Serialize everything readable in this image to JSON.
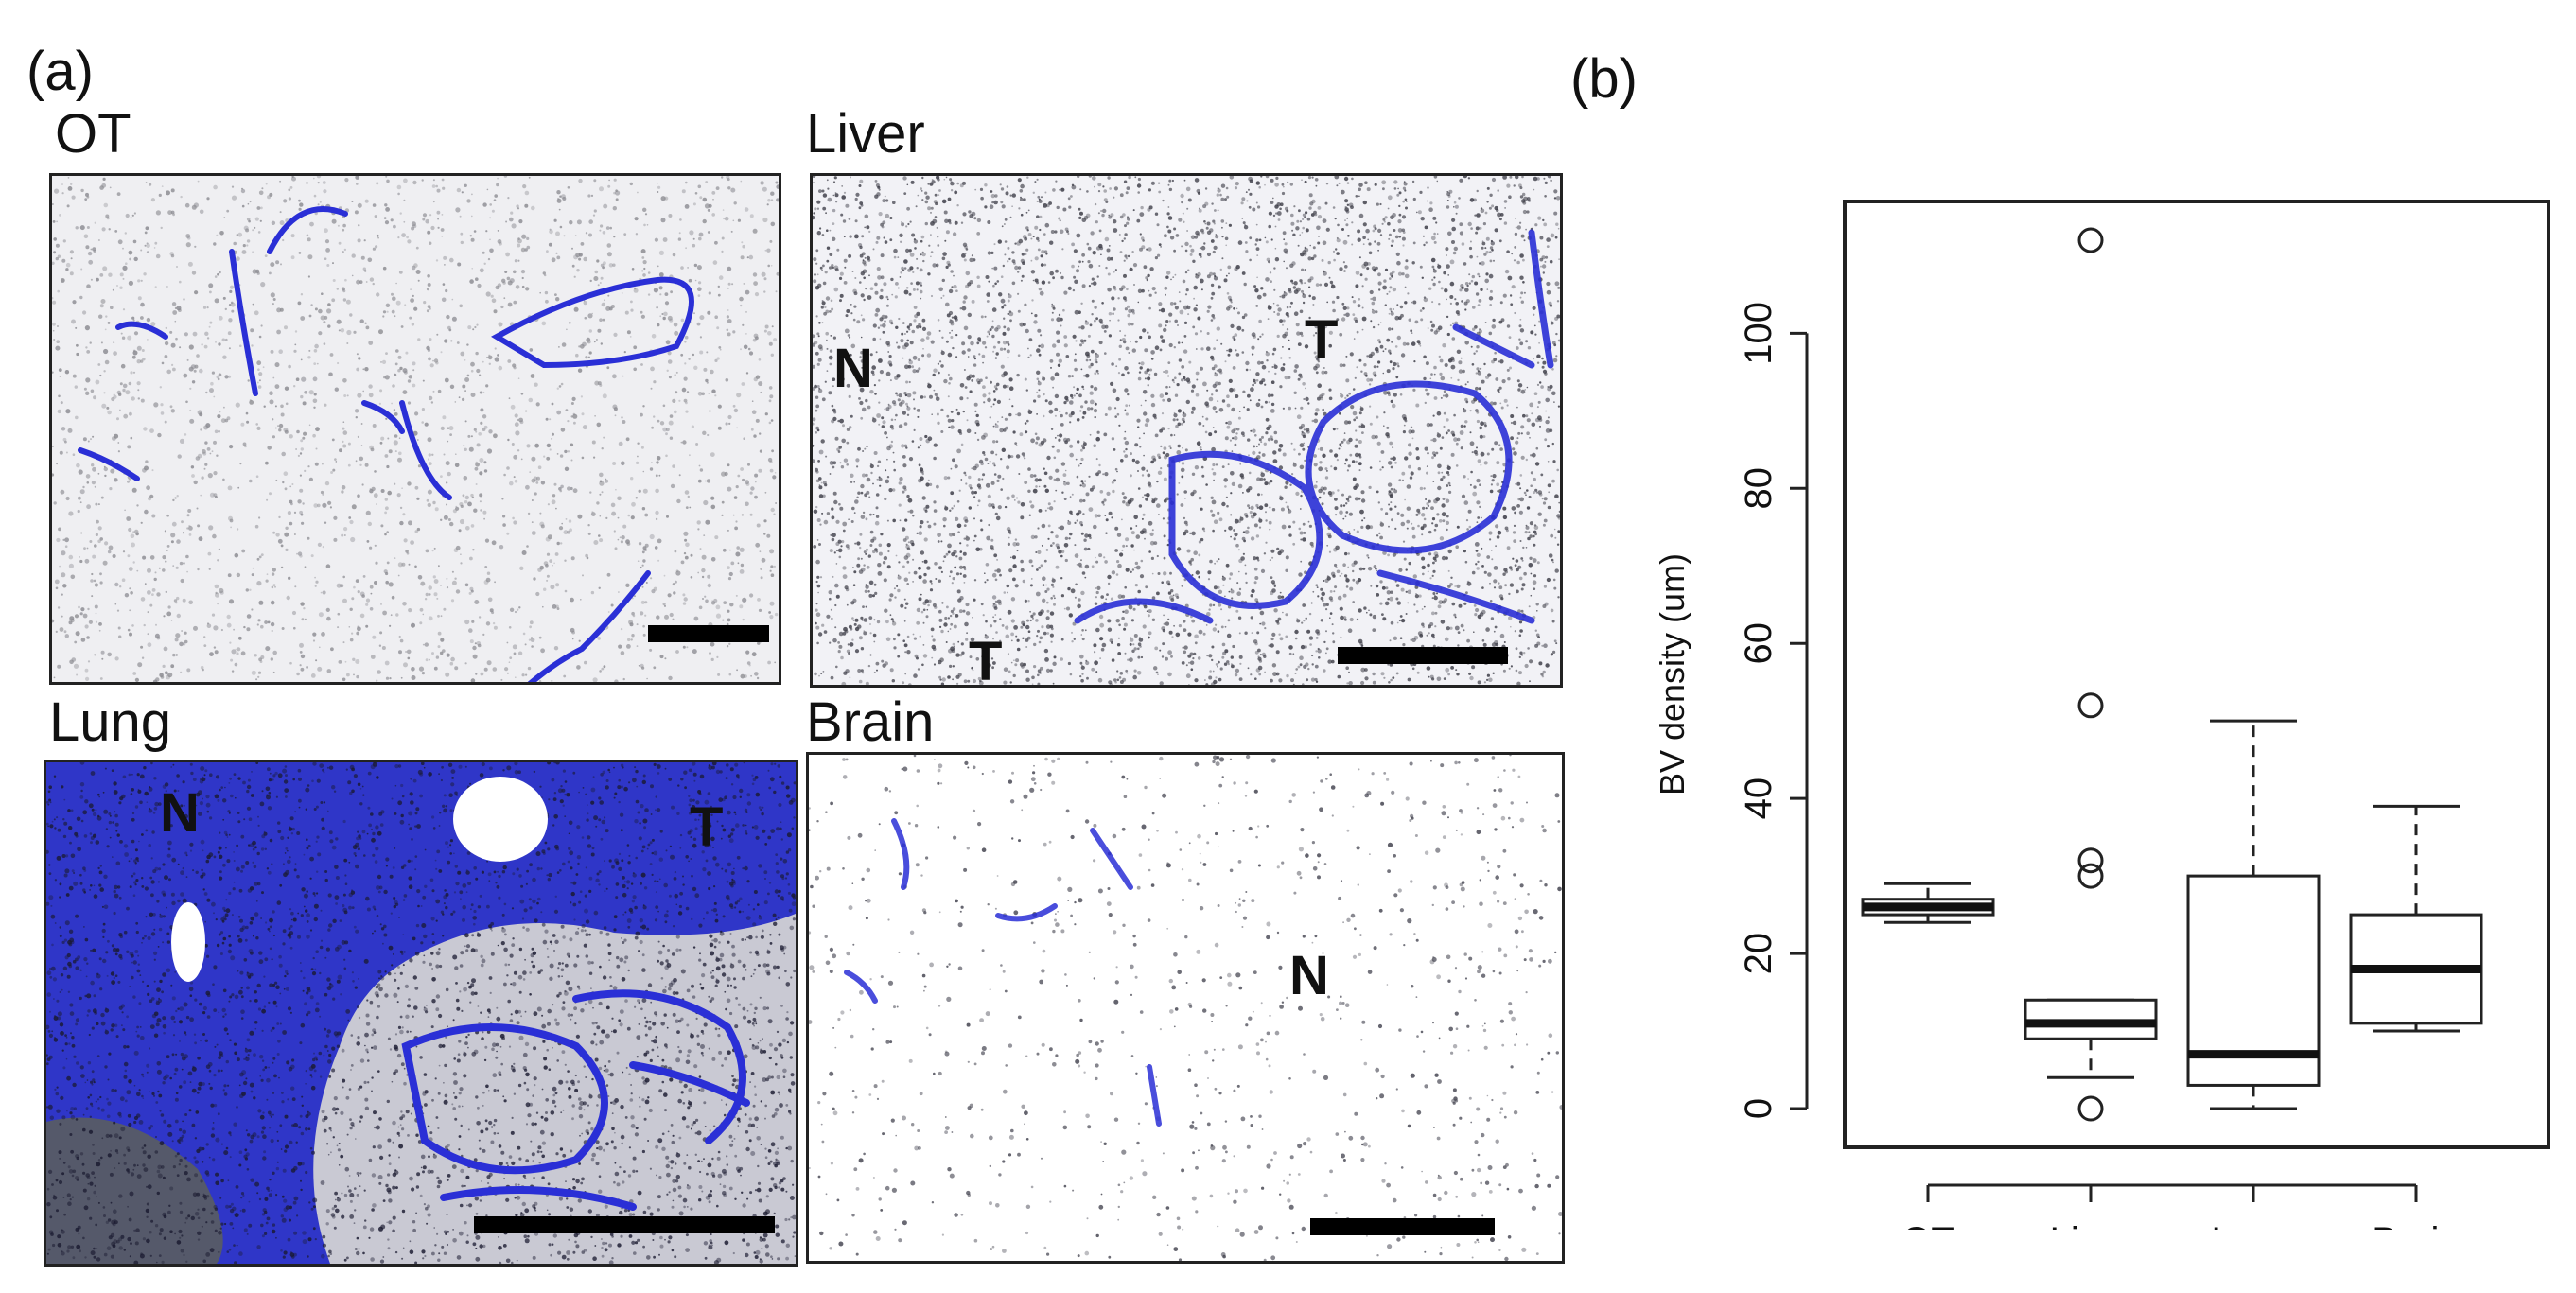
{
  "panel_a": {
    "letter": "(a)",
    "images": [
      {
        "label": "OT",
        "regions": []
      },
      {
        "label": "Liver",
        "regions": [
          "N",
          "T",
          "T"
        ]
      },
      {
        "label": "Lung",
        "regions": [
          "N",
          "T"
        ]
      },
      {
        "label": "Brain",
        "regions": [
          "N"
        ]
      }
    ]
  },
  "panel_b": {
    "letter": "(b)"
  },
  "colors": {
    "stain_blue": "#2a2fd6",
    "nuclei_gray": "#666666",
    "outline": "#222222"
  },
  "chart_data": {
    "type": "box",
    "title": "",
    "xlabel": "",
    "ylabel": "BV density (um)",
    "ylim": [
      -5,
      117
    ],
    "yticks": [
      0,
      20,
      40,
      60,
      80,
      100
    ],
    "categories": [
      "OT",
      "Liver",
      "Lung",
      "Brain"
    ],
    "boxes": [
      {
        "category": "OT",
        "whisker_low": 24,
        "q1": 25,
        "median": 26,
        "q3": 27,
        "whisker_high": 29,
        "outliers": []
      },
      {
        "category": "Liver",
        "whisker_low": 4,
        "q1": 9,
        "median": 11,
        "q3": 14,
        "whisker_high": 14,
        "outliers": [
          0,
          30,
          32,
          52,
          112
        ]
      },
      {
        "category": "Lung",
        "whisker_low": 0,
        "q1": 3,
        "median": 7,
        "q3": 30,
        "whisker_high": 50,
        "outliers": []
      },
      {
        "category": "Brain",
        "whisker_low": 10,
        "q1": 11,
        "median": 18,
        "q3": 25,
        "whisker_high": 39,
        "outliers": []
      }
    ],
    "grid": false,
    "legend": "none"
  }
}
